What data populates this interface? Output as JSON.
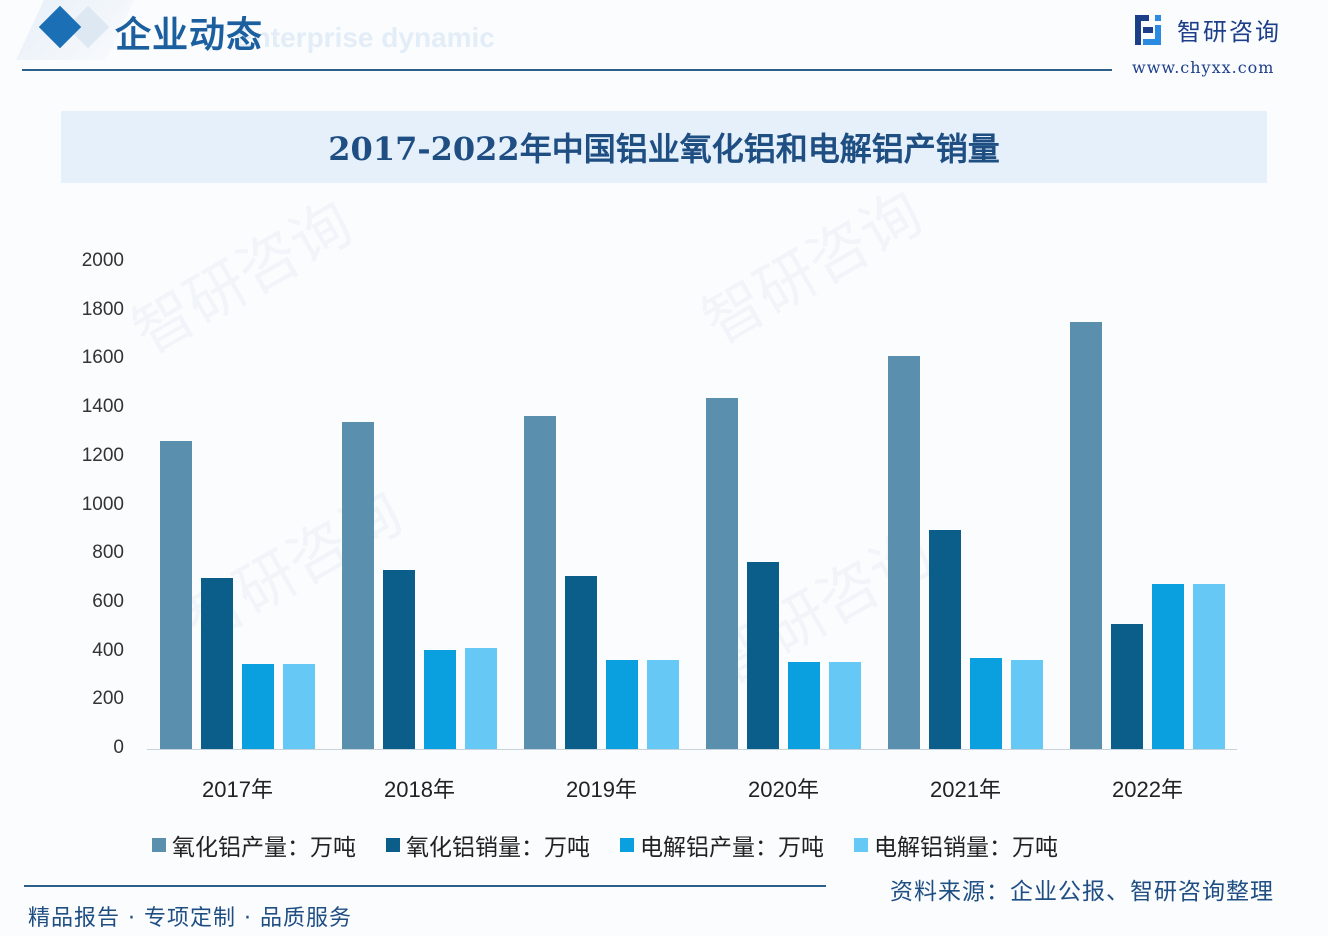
{
  "header": {
    "title": "企业动态",
    "subtitle": "Enterprise dynamic",
    "brand_name": "智研咨询",
    "brand_url": "www.chyxx.com"
  },
  "chart_title": "2017-2022年中国铝业氧化铝和电解铝产销量",
  "y_axis": {
    "ticks": [
      "2000",
      "1800",
      "1600",
      "1400",
      "1200",
      "1000",
      "800",
      "600",
      "400",
      "200",
      "0"
    ]
  },
  "x_axis": {
    "labels": [
      "2017年",
      "2018年",
      "2019年",
      "2020年",
      "2021年",
      "2022年"
    ]
  },
  "legend": [
    {
      "label": "氧化铝产量：万吨",
      "color": "#5b8fae"
    },
    {
      "label": "氧化铝销量：万吨",
      "color": "#0b5e8a"
    },
    {
      "label": "电解铝产量：万吨",
      "color": "#0aa0e0"
    },
    {
      "label": "电解铝销量：万吨",
      "color": "#66c8f5"
    }
  ],
  "footer": {
    "slogan": "精品报告 · 专项定制 · 品质服务",
    "source": "资料来源：企业公报、智研咨询整理"
  },
  "watermark": "智研咨询",
  "chart_data": {
    "type": "bar",
    "title": "2017-2022年中国铝业氧化铝和电解铝产销量",
    "xlabel": "",
    "ylabel": "",
    "ylim": [
      0,
      2000
    ],
    "yticks": [
      0,
      200,
      400,
      600,
      800,
      1000,
      1200,
      1400,
      1600,
      1800,
      2000
    ],
    "grid": false,
    "legend_position": "bottom",
    "categories": [
      "2017年",
      "2018年",
      "2019年",
      "2020年",
      "2021年",
      "2022年"
    ],
    "series": [
      {
        "name": "氧化铝产量：万吨",
        "color": "#5b8fae",
        "values": [
          1265,
          1343,
          1367,
          1441,
          1614,
          1754
        ]
      },
      {
        "name": "氧化铝销量：万吨",
        "color": "#0b5e8a",
        "values": [
          702,
          735,
          711,
          768,
          899,
          513
        ]
      },
      {
        "name": "电解铝产量：万吨",
        "color": "#0aa0e0",
        "values": [
          349,
          407,
          366,
          357,
          374,
          678
        ]
      },
      {
        "name": "电解铝销量：万吨",
        "color": "#66c8f5",
        "values": [
          349,
          415,
          366,
          357,
          366,
          678
        ]
      }
    ]
  }
}
